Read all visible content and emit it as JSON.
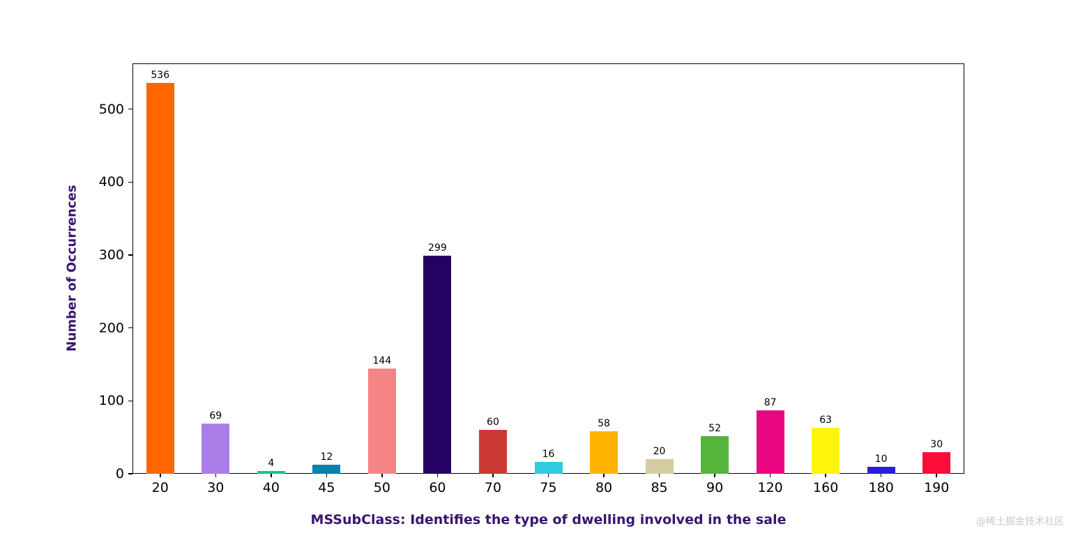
{
  "watermark": "@稀土掘金技术社区",
  "chart_data": {
    "type": "bar",
    "title": "",
    "xlabel": "MSSubClass: Identifies the type of dwelling involved in the sale",
    "ylabel": "Number of Occurrences",
    "categories": [
      "20",
      "30",
      "40",
      "45",
      "50",
      "60",
      "70",
      "75",
      "80",
      "85",
      "90",
      "120",
      "160",
      "180",
      "190"
    ],
    "values": [
      536,
      69,
      4,
      12,
      144,
      299,
      60,
      16,
      58,
      20,
      52,
      87,
      63,
      10,
      30
    ],
    "bar_colors": [
      "#FF6600",
      "#AB7DE8",
      "#14C87F",
      "#0581AD",
      "#F58484",
      "#250163",
      "#CB3935",
      "#2FCBDE",
      "#FFB400",
      "#D5CDA1",
      "#55B43B",
      "#E90680",
      "#FEF508",
      "#2B1EDB",
      "#FB0D38"
    ],
    "ytick_labels": [
      "0",
      "100",
      "200",
      "300",
      "400",
      "500"
    ],
    "yticks": [
      0,
      100,
      200,
      300,
      400,
      500
    ],
    "ylim": [
      0,
      562.8
    ],
    "bar_value_labels": [
      "536",
      "69",
      "4",
      "12",
      "144",
      "299",
      "60",
      "16",
      "58",
      "20",
      "52",
      "87",
      "63",
      "10",
      "30"
    ],
    "axis_title_color": "#38156F",
    "tick_label_color": "#000000",
    "frame_color": "#000000",
    "background_color": "#FFFFFF",
    "grid": false,
    "legend": null
  }
}
